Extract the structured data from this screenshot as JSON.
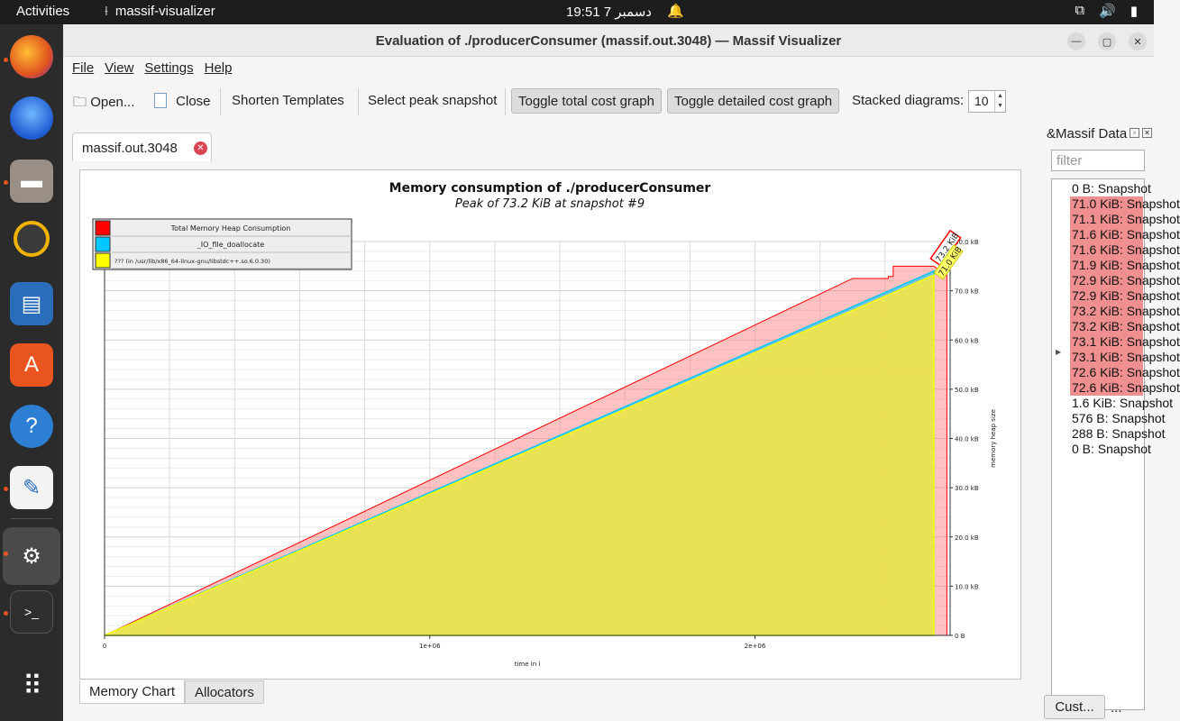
{
  "topbar": {
    "activities": "Activities",
    "app_name": "massif-visualizer",
    "clock": "19:51  7 دسمبر",
    "icons": [
      "network-icon",
      "volume-icon",
      "battery-icon"
    ]
  },
  "dock": {
    "items": [
      "firefox-icon",
      "thunderbird-icon",
      "files-icon",
      "rhythmbox-icon",
      "libreoffice-impress-icon",
      "app-center-icon",
      "help-icon",
      "text-editor-icon",
      "settings-icon",
      "terminal-icon",
      "show-apps-icon"
    ]
  },
  "window": {
    "title": "Evaluation of ./producerConsumer (massif.out.3048) — Massif Visualizer"
  },
  "menu": {
    "file": "File",
    "view": "View",
    "settings": "Settings",
    "help": "Help"
  },
  "toolbar": {
    "open": "Open...",
    "close": "Close",
    "shorten": "Shorten Templates",
    "select_peak": "Select peak snapshot",
    "toggle_total": "Toggle total cost graph",
    "toggle_detailed": "Toggle detailed cost graph",
    "stacked_label": "Stacked diagrams:",
    "stacked_value": "10"
  },
  "doc_tab": {
    "label": "massif.out.3048"
  },
  "chart_data": {
    "type": "area",
    "title": "Memory consumption of ./producerConsumer",
    "subtitle": "Peak of 73.2 KiB at snapshot #9",
    "xlabel": "time in i",
    "ylabel": "memory heap size",
    "xlim": [
      0,
      2600000
    ],
    "ylim": [
      0,
      80
    ],
    "x_ticks": [
      {
        "value": 0,
        "label": "0"
      },
      {
        "value": 1000000,
        "label": "1e+06"
      },
      {
        "value": 2000000,
        "label": "2e+06"
      }
    ],
    "y_ticks": [
      {
        "value": 0,
        "label": "0 B"
      },
      {
        "value": 10,
        "label": "10.0 kB"
      },
      {
        "value": 20,
        "label": "20.0 kB"
      },
      {
        "value": 30,
        "label": "30.0 kB"
      },
      {
        "value": 40,
        "label": "40.0 kB"
      },
      {
        "value": 50,
        "label": "50.0 kB"
      },
      {
        "value": 60,
        "label": "60.0 kB"
      },
      {
        "value": 70,
        "label": "70.0 kB"
      },
      {
        "value": 80,
        "label": "80.0 kB"
      }
    ],
    "legend": [
      {
        "name": "Total Memory Heap Consumption",
        "color": "#ff0000"
      },
      {
        "name": "_IO_file_doallocate",
        "color": "#00c8ff"
      },
      {
        "name": "??? (in /usr/lib/x86_64-linux-gnu/libstdc++.so.6.0.30)",
        "color": "#ffff00"
      }
    ],
    "series": [
      {
        "name": "Total Memory Heap Consumption",
        "color": "#ff0000",
        "x": [
          0,
          2300000,
          2410000,
          2410000,
          2425000,
          2425000,
          2550000,
          2590000
        ],
        "values": [
          0,
          72.5,
          72.5,
          72.9,
          72.9,
          75.0,
          75.0,
          73.2
        ]
      },
      {
        "name": "_IO_file_doallocate",
        "color": "#00c8ff",
        "x": [
          0,
          2550000
        ],
        "values": [
          0,
          74.0
        ]
      },
      {
        "name": "??? (in /usr/lib/x86_64-linux-gnu/libstdc++.so.6.0.30)",
        "color": "#ffff00",
        "x": [
          0,
          2550000
        ],
        "values": [
          0,
          73.2
        ]
      }
    ],
    "peak_labels": [
      "73.2 KiB",
      "71.0 KiB"
    ]
  },
  "bottom_tabs": {
    "memory_chart": "Memory Chart",
    "allocators": "Allocators"
  },
  "massif_panel": {
    "title": "&Massif Data",
    "filter_placeholder": "filter",
    "snapshots": [
      {
        "label": "0 B: Snapshot",
        "peak": false
      },
      {
        "label": "71.0 KiB: Snapshot",
        "peak": true
      },
      {
        "label": "71.1 KiB: Snapshot",
        "peak": true
      },
      {
        "label": "71.6 KiB: Snapshot",
        "peak": true
      },
      {
        "label": "71.6 KiB: Snapshot",
        "peak": true
      },
      {
        "label": "71.9 KiB: Snapshot",
        "peak": true
      },
      {
        "label": "72.9 KiB: Snapshot",
        "peak": true
      },
      {
        "label": "72.9 KiB: Snapshot",
        "peak": true
      },
      {
        "label": "73.2 KiB: Snapshot",
        "peak": true
      },
      {
        "label": "73.2 KiB: Snapshot",
        "peak": true
      },
      {
        "label": "73.1 KiB: Snapshot",
        "peak": true
      },
      {
        "label": "73.1 KiB: Snapshot",
        "peak": true
      },
      {
        "label": "72.6 KiB: Snapshot",
        "peak": true
      },
      {
        "label": "72.6 KiB: Snapshot",
        "peak": true
      },
      {
        "label": "1.6 KiB: Snapshot",
        "peak": false
      },
      {
        "label": "576 B: Snapshot",
        "peak": false
      },
      {
        "label": "288 B: Snapshot",
        "peak": false
      },
      {
        "label": "0 B: Snapshot",
        "peak": false
      }
    ],
    "custom_button": "Cust...",
    "more_button": "..."
  }
}
